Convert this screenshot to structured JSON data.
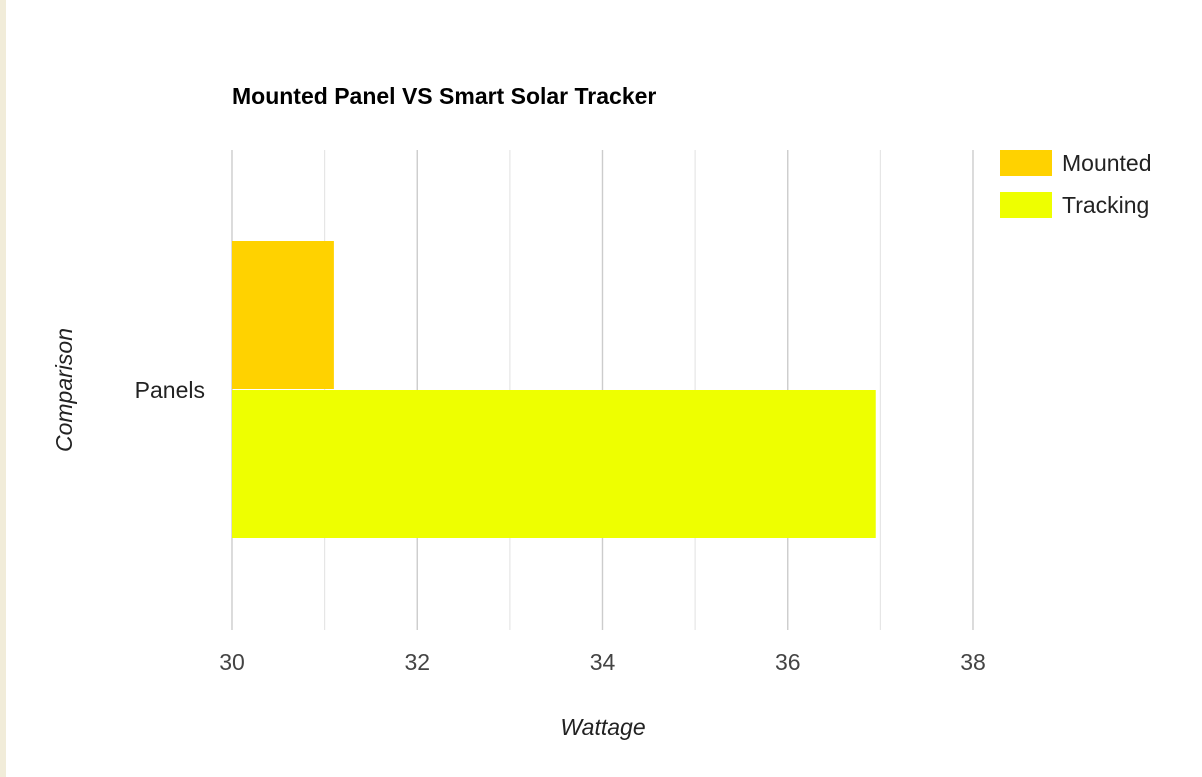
{
  "chart_data": {
    "type": "bar",
    "orientation": "horizontal",
    "title": "Mounted Panel VS Smart Solar Tracker",
    "xlabel": "Wattage",
    "ylabel": "Comparison",
    "categories": [
      "Panels"
    ],
    "series": [
      {
        "name": "Mounted",
        "values": [
          31.1
        ],
        "color": "#ffd200"
      },
      {
        "name": "Tracking",
        "values": [
          36.95
        ],
        "color": "#eeff00"
      }
    ],
    "xlim": [
      30,
      38
    ],
    "major_ticks": [
      30,
      32,
      34,
      36,
      38
    ],
    "major_tick_labels": [
      "30",
      "32",
      "34",
      "36",
      "38"
    ],
    "minor_ticks": [
      31,
      33,
      35,
      37
    ],
    "grid": true,
    "legend": "right"
  }
}
